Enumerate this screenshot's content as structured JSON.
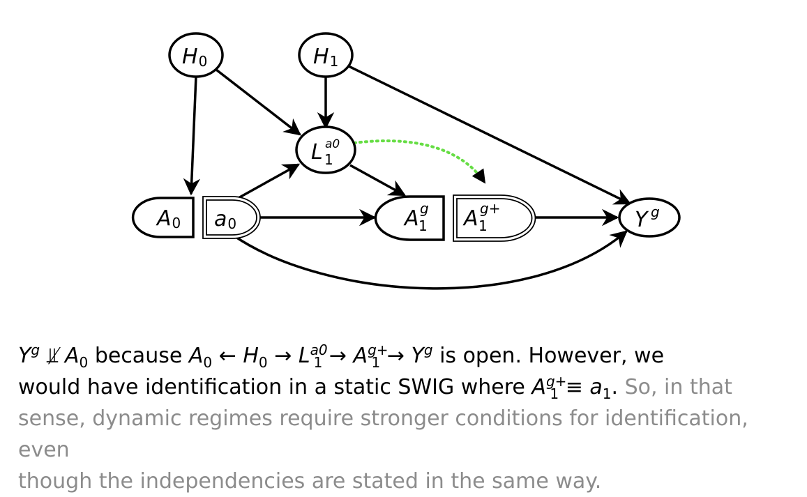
{
  "diagram": {
    "nodes": {
      "H0": {
        "base": "H",
        "sub": "0"
      },
      "H1": {
        "base": "H",
        "sub": "1"
      },
      "L1": {
        "base": "L",
        "sub": "1",
        "sup": "a0"
      },
      "A0": {
        "base": "A",
        "sub": "0"
      },
      "a0": {
        "base": "a",
        "sub": "0"
      },
      "A1g": {
        "base": "A",
        "sub": "1",
        "sup": "g"
      },
      "A1gplus": {
        "base": "A",
        "sub": "1",
        "sup": "g+"
      },
      "Yg": {
        "base": "Y",
        "sup": "g"
      }
    },
    "edges": [
      {
        "from": "H0",
        "to": "A0",
        "style": "solid"
      },
      {
        "from": "H0",
        "to": "L1",
        "style": "solid"
      },
      {
        "from": "H1",
        "to": "L1",
        "style": "solid"
      },
      {
        "from": "H1",
        "to": "Yg",
        "style": "solid"
      },
      {
        "from": "a0",
        "to": "L1",
        "style": "solid"
      },
      {
        "from": "a0",
        "to": "A1g",
        "style": "solid"
      },
      {
        "from": "L1",
        "to": "A1g",
        "style": "solid"
      },
      {
        "from": "A1gplus",
        "to": "Yg",
        "style": "solid"
      },
      {
        "from": "a0",
        "to": "Yg",
        "style": "solid-curved"
      },
      {
        "from": "L1",
        "to": "A1gplus",
        "style": "dotted",
        "color": "#66dd44"
      }
    ],
    "colors": {
      "stroke": "#000000",
      "dotted_edge": "#66dd44"
    }
  },
  "caption": {
    "seg1_Y": "Y",
    "seg1_g": "g",
    "indep_symbol": "⫫̸",
    "A": "A",
    "zero": "0",
    "because": "because",
    "larrow": "←",
    "H": "H",
    "rarrow": "→",
    "L": "L",
    "one": "1",
    "a0sup": "a0",
    "gplus": "g+",
    "is_open": "is open.  However, we",
    "line2": "would have identification in a static SWIG where",
    "equiv": "≡",
    "a1": "a",
    "period": ".",
    "gray1": " So, in that",
    "gray2": "sense, dynamic regimes require stronger conditions for identification, even",
    "gray3": "though the independencies are stated in the same way."
  }
}
